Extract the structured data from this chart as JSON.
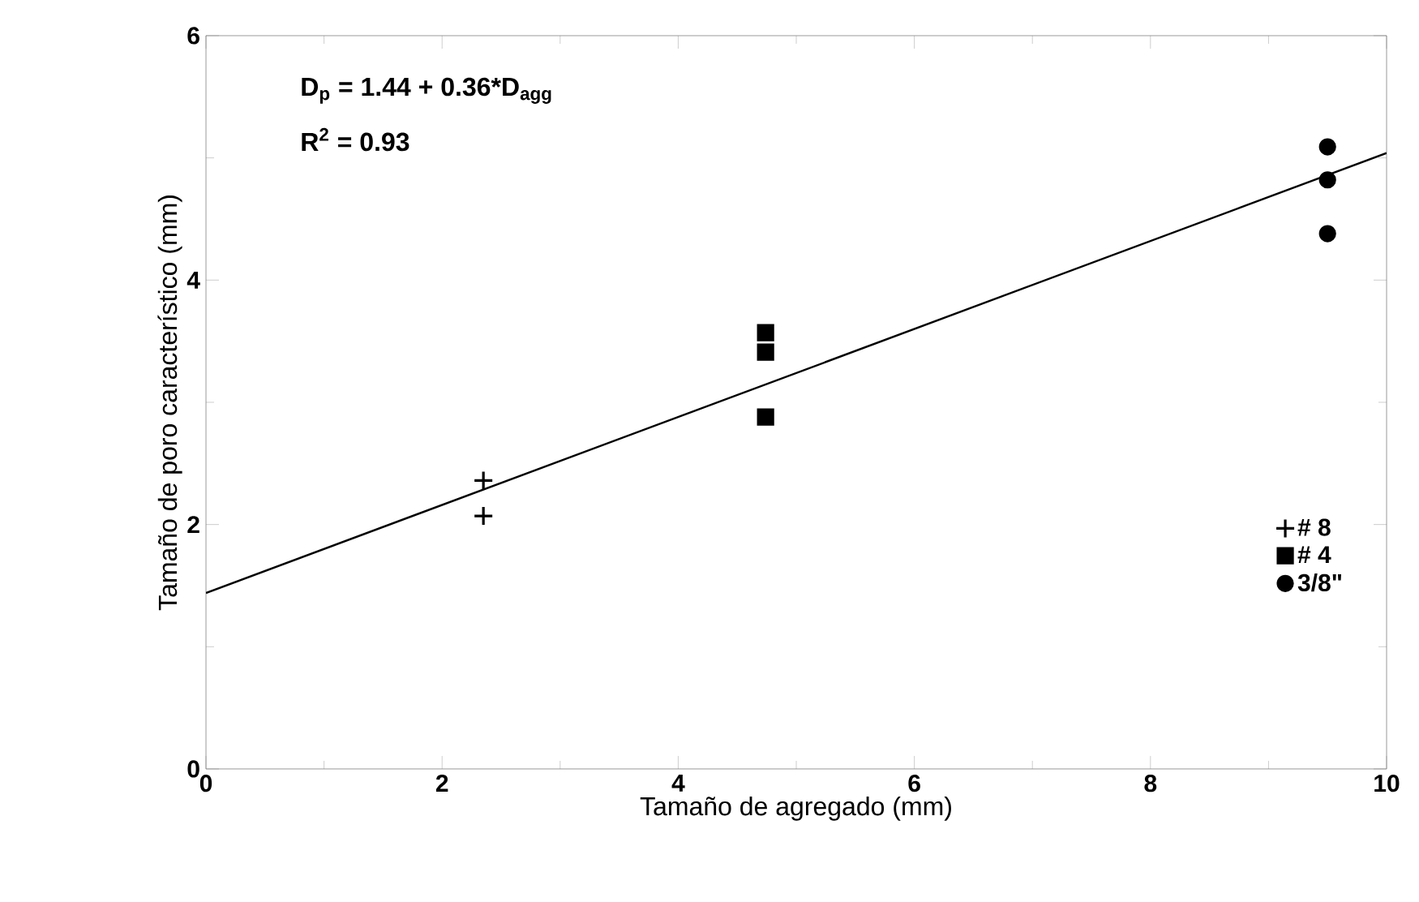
{
  "chart_data": {
    "type": "scatter",
    "xlabel": "Tamaño de agregado (mm)",
    "ylabel": "Tamaño de poro característico (mm)",
    "xlim": [
      0,
      10
    ],
    "ylim": [
      0,
      6
    ],
    "xticks": [
      0,
      2,
      4,
      6,
      8,
      10
    ],
    "yticks": [
      0,
      2,
      4,
      6
    ],
    "grid": false,
    "legend": "bottom right",
    "annotations": [
      "D$_{p}$ = 1.44 + 0.36*D$_{agg}$",
      "R$^{2}$ = 0.93"
    ],
    "series": [
      {
        "name": "# 8",
        "color": "#000000",
        "marker": "cross",
        "x": [
          2.35,
          2.35
        ],
        "values": [
          2.36,
          2.07
        ]
      },
      {
        "name": "# 4",
        "color": "#000000",
        "marker": "square",
        "x": [
          4.74,
          4.74,
          4.74
        ],
        "values": [
          3.57,
          3.41,
          2.88
        ]
      },
      {
        "name": "3/8\"",
        "color": "#000000",
        "marker": "circle",
        "x": [
          9.5,
          9.5,
          9.5
        ],
        "values": [
          5.09,
          4.82,
          4.38
        ]
      },
      {
        "type": "line",
        "color": "#000000",
        "marker": "none",
        "line_style": "solid",
        "x": [
          0,
          10
        ],
        "values": [
          1.44,
          5.04
        ]
      }
    ]
  }
}
